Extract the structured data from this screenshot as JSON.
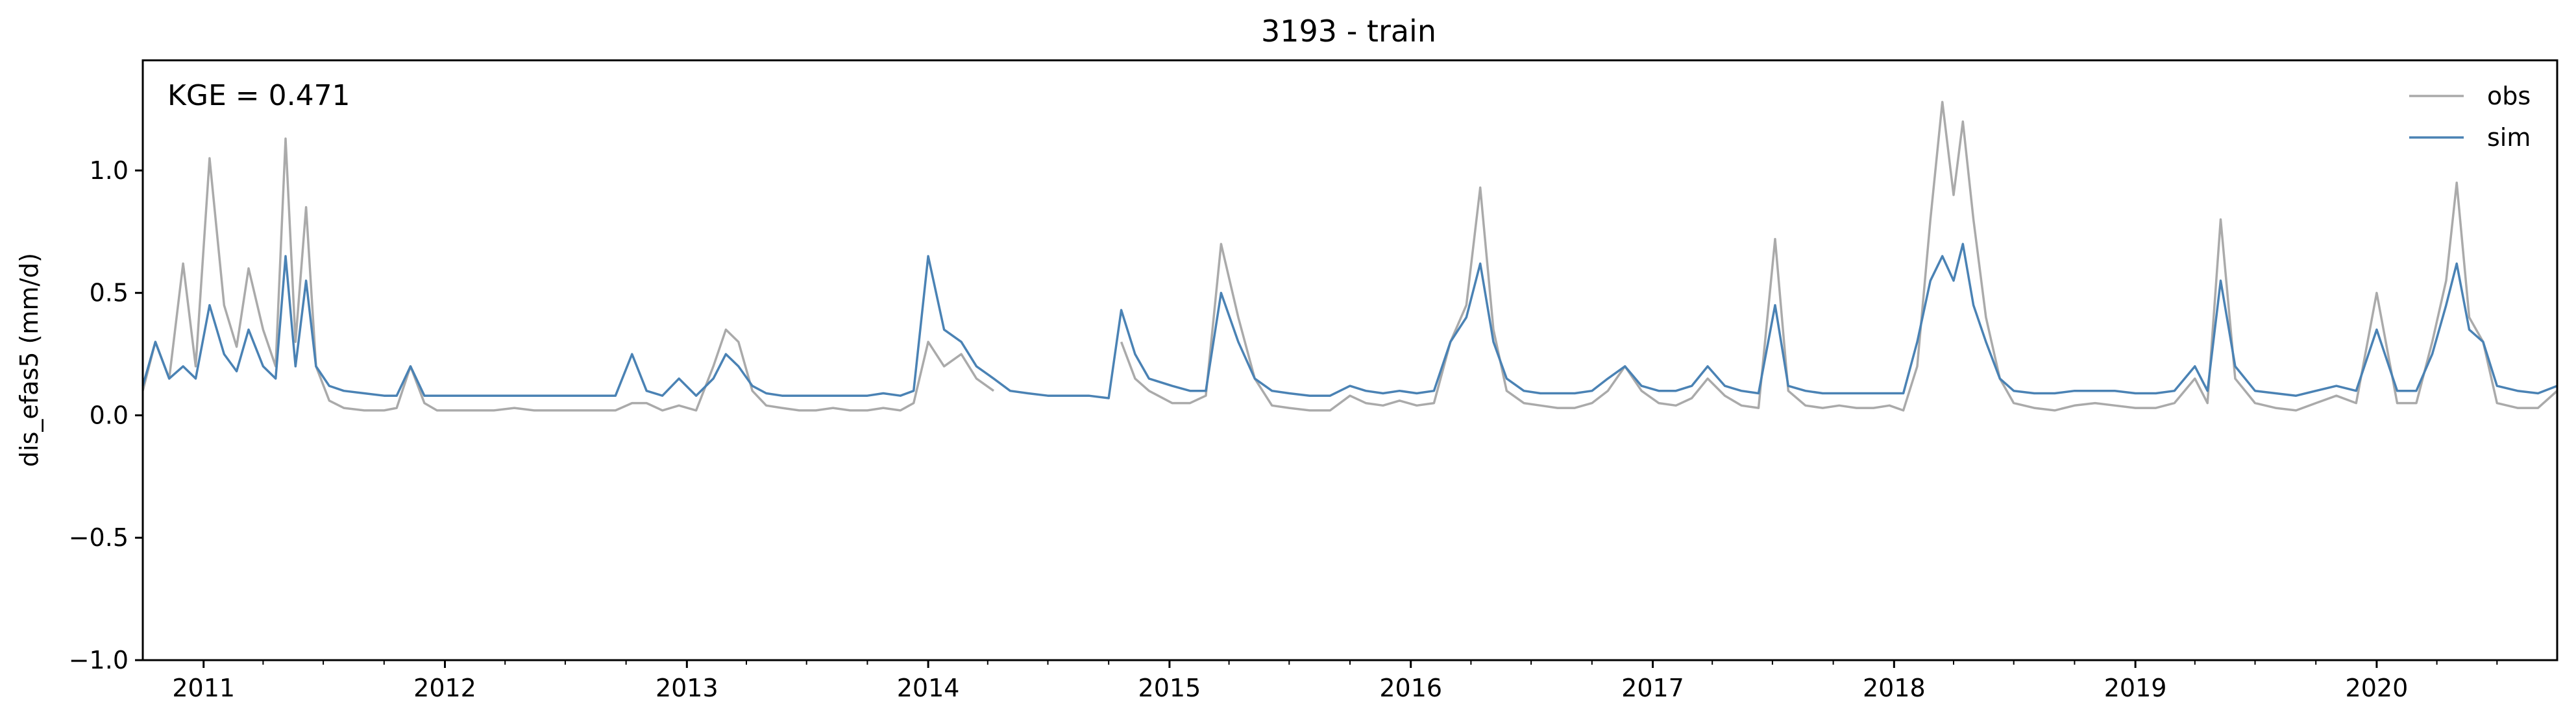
{
  "chart_data": {
    "type": "line",
    "title": "3193 - train",
    "xlabel": "",
    "ylabel": "dis_efas5 (mm/d)",
    "annotation": "KGE = 0.471",
    "xlim": [
      "2010-10-01",
      "2020-09-30"
    ],
    "ylim": [
      -1.0,
      1.45
    ],
    "grid": false,
    "legend": "top-right",
    "yticks": [
      -1.0,
      -0.5,
      0.0,
      0.5,
      1.0
    ],
    "ytick_labels": [
      "−1.0",
      "−0.5",
      "0.0",
      "0.5",
      "1.0"
    ],
    "xticks": [
      "2011-01-01",
      "2012-01-01",
      "2013-01-01",
      "2014-01-01",
      "2015-01-01",
      "2016-01-01",
      "2017-01-01",
      "2018-01-01",
      "2019-01-01",
      "2020-01-01"
    ],
    "xtick_labels": [
      "2011",
      "2012",
      "2013",
      "2014",
      "2015",
      "2016",
      "2017",
      "2018",
      "2019",
      "2020"
    ],
    "x": [
      "2010-10-01",
      "2010-10-20",
      "2010-11-10",
      "2010-12-01",
      "2010-12-20",
      "2011-01-10",
      "2011-02-01",
      "2011-02-20",
      "2011-03-10",
      "2011-04-01",
      "2011-04-20",
      "2011-05-05",
      "2011-05-20",
      "2011-06-05",
      "2011-06-20",
      "2011-07-10",
      "2011-08-01",
      "2011-09-01",
      "2011-10-01",
      "2011-10-20",
      "2011-11-10",
      "2011-12-01",
      "2011-12-20",
      "2012-01-15",
      "2012-02-15",
      "2012-03-15",
      "2012-04-15",
      "2012-05-15",
      "2012-06-15",
      "2012-07-15",
      "2012-08-15",
      "2012-09-15",
      "2012-10-10",
      "2012-11-01",
      "2012-11-25",
      "2012-12-20",
      "2013-01-15",
      "2013-02-10",
      "2013-03-01",
      "2013-03-20",
      "2013-04-10",
      "2013-05-01",
      "2013-05-25",
      "2013-06-20",
      "2013-07-15",
      "2013-08-10",
      "2013-09-05",
      "2013-10-01",
      "2013-10-25",
      "2013-11-20",
      "2013-12-10",
      "2014-01-01",
      "2014-01-25",
      "2014-02-20",
      "2014-03-15",
      "2014-04-10",
      "2014-05-05",
      "2014-06-01",
      "2014-07-01",
      "2014-08-01",
      "2014-09-01",
      "2014-10-01",
      "2014-10-20",
      "2014-11-10",
      "2014-12-01",
      "2015-01-05",
      "2015-02-01",
      "2015-02-25",
      "2015-03-20",
      "2015-04-15",
      "2015-05-10",
      "2015-06-05",
      "2015-07-01",
      "2015-08-01",
      "2015-09-01",
      "2015-10-01",
      "2015-10-25",
      "2015-11-20",
      "2015-12-15",
      "2016-01-10",
      "2016-02-05",
      "2016-03-01",
      "2016-03-25",
      "2016-04-15",
      "2016-05-05",
      "2016-05-25",
      "2016-06-20",
      "2016-07-15",
      "2016-08-10",
      "2016-09-05",
      "2016-10-01",
      "2016-10-25",
      "2016-11-20",
      "2016-12-15",
      "2017-01-10",
      "2017-02-05",
      "2017-03-01",
      "2017-03-25",
      "2017-04-20",
      "2017-05-15",
      "2017-06-10",
      "2017-07-05",
      "2017-07-25",
      "2017-08-20",
      "2017-09-15",
      "2017-10-10",
      "2017-11-05",
      "2017-12-01",
      "2017-12-25",
      "2018-01-15",
      "2018-02-05",
      "2018-02-25",
      "2018-03-15",
      "2018-04-01",
      "2018-04-15",
      "2018-05-01",
      "2018-05-20",
      "2018-06-10",
      "2018-07-01",
      "2018-08-01",
      "2018-09-01",
      "2018-10-01",
      "2018-11-01",
      "2018-12-01",
      "2019-01-01",
      "2019-02-01",
      "2019-03-01",
      "2019-04-01",
      "2019-04-20",
      "2019-05-10",
      "2019-06-01",
      "2019-07-01",
      "2019-08-01",
      "2019-09-01",
      "2019-10-01",
      "2019-11-01",
      "2019-12-01",
      "2020-01-01",
      "2020-02-01",
      "2020-03-01",
      "2020-03-25",
      "2020-04-15",
      "2020-05-01",
      "2020-05-20",
      "2020-06-10",
      "2020-07-01",
      "2020-08-01",
      "2020-09-01",
      "2020-09-30"
    ],
    "series": [
      {
        "name": "obs",
        "color": "#aaaaaa",
        "values": [
          0.1,
          0.3,
          0.15,
          0.62,
          0.2,
          1.05,
          0.45,
          0.28,
          0.6,
          0.35,
          0.2,
          1.13,
          0.3,
          0.85,
          0.2,
          0.06,
          0.03,
          0.02,
          0.02,
          0.03,
          0.2,
          0.05,
          0.02,
          0.02,
          0.02,
          0.02,
          0.03,
          0.02,
          0.02,
          0.02,
          0.02,
          0.02,
          0.05,
          0.05,
          0.02,
          0.04,
          0.02,
          0.2,
          0.35,
          0.3,
          0.1,
          0.04,
          0.03,
          0.02,
          0.02,
          0.03,
          0.02,
          0.02,
          0.03,
          0.02,
          0.05,
          0.3,
          0.2,
          0.25,
          0.15,
          0.1,
          null,
          null,
          null,
          null,
          null,
          null,
          0.3,
          0.15,
          0.1,
          0.05,
          0.05,
          0.08,
          0.7,
          0.4,
          0.15,
          0.04,
          0.03,
          0.02,
          0.02,
          0.08,
          0.05,
          0.04,
          0.06,
          0.04,
          0.05,
          0.3,
          0.45,
          0.93,
          0.35,
          0.1,
          0.05,
          0.04,
          0.03,
          0.03,
          0.05,
          0.1,
          0.2,
          0.1,
          0.05,
          0.04,
          0.07,
          0.15,
          0.08,
          0.04,
          0.03,
          0.72,
          0.1,
          0.04,
          0.03,
          0.04,
          0.03,
          0.03,
          0.04,
          0.02,
          0.2,
          0.8,
          1.28,
          0.9,
          1.2,
          0.8,
          0.4,
          0.15,
          0.05,
          0.03,
          0.02,
          0.04,
          0.05,
          0.04,
          0.03,
          0.03,
          0.05,
          0.15,
          0.05,
          0.8,
          0.15,
          0.05,
          0.03,
          0.02,
          0.05,
          0.08,
          0.05,
          0.5,
          0.05,
          0.05,
          0.3,
          0.55,
          0.95,
          0.4,
          0.3,
          0.05,
          0.03,
          0.03,
          0.1
        ]
      },
      {
        "name": "sim",
        "color": "#4a82b4",
        "values": [
          0.12,
          0.3,
          0.15,
          0.2,
          0.15,
          0.45,
          0.25,
          0.18,
          0.35,
          0.2,
          0.15,
          0.65,
          0.2,
          0.55,
          0.2,
          0.12,
          0.1,
          0.09,
          0.08,
          0.08,
          0.2,
          0.08,
          0.08,
          0.08,
          0.08,
          0.08,
          0.08,
          0.08,
          0.08,
          0.08,
          0.08,
          0.08,
          0.25,
          0.1,
          0.08,
          0.15,
          0.08,
          0.15,
          0.25,
          0.2,
          0.12,
          0.09,
          0.08,
          0.08,
          0.08,
          0.08,
          0.08,
          0.08,
          0.09,
          0.08,
          0.1,
          0.65,
          0.35,
          0.3,
          0.2,
          0.15,
          0.1,
          0.09,
          0.08,
          0.08,
          0.08,
          0.07,
          0.43,
          0.25,
          0.15,
          0.12,
          0.1,
          0.1,
          0.5,
          0.3,
          0.15,
          0.1,
          0.09,
          0.08,
          0.08,
          0.12,
          0.1,
          0.09,
          0.1,
          0.09,
          0.1,
          0.3,
          0.4,
          0.62,
          0.3,
          0.15,
          0.1,
          0.09,
          0.09,
          0.09,
          0.1,
          0.15,
          0.2,
          0.12,
          0.1,
          0.1,
          0.12,
          0.2,
          0.12,
          0.1,
          0.09,
          0.45,
          0.12,
          0.1,
          0.09,
          0.09,
          0.09,
          0.09,
          0.09,
          0.09,
          0.3,
          0.55,
          0.65,
          0.55,
          0.7,
          0.45,
          0.3,
          0.15,
          0.1,
          0.09,
          0.09,
          0.1,
          0.1,
          0.1,
          0.09,
          0.09,
          0.1,
          0.2,
          0.1,
          0.55,
          0.2,
          0.1,
          0.09,
          0.08,
          0.1,
          0.12,
          0.1,
          0.35,
          0.1,
          0.1,
          0.25,
          0.45,
          0.62,
          0.35,
          0.3,
          0.12,
          0.1,
          0.09,
          0.12
        ]
      }
    ]
  }
}
